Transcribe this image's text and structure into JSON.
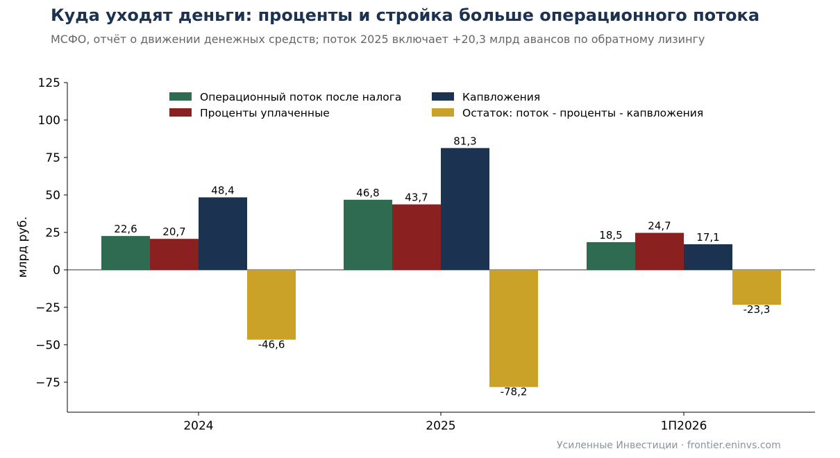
{
  "title": "Куда уходят деньги: проценты и стройка больше операционного потока",
  "subtitle": "МСФО, отчёт о движении денежных средств; поток 2025 включает +20,3 млрд авансов по обратному лизингу",
  "source": "Усиленные Инвестиции · frontier.eninvs.com",
  "chart_data": {
    "type": "bar",
    "categories": [
      "2024",
      "2025",
      "1П2026"
    ],
    "series": [
      {
        "name": "Операционный поток после налога",
        "color": "#2e6b50",
        "values": [
          22.6,
          46.8,
          18.5
        ],
        "labels": [
          "22,6",
          "46,8",
          "18,5"
        ]
      },
      {
        "name": "Проценты уплаченные",
        "color": "#8b2020",
        "values": [
          20.7,
          43.7,
          24.7
        ],
        "labels": [
          "20,7",
          "43,7",
          "24,7"
        ]
      },
      {
        "name": "Капвложения",
        "color": "#1b3350",
        "values": [
          48.4,
          81.3,
          17.1
        ],
        "labels": [
          "48,4",
          "81,3",
          "17,1"
        ]
      },
      {
        "name": "Остаток: поток - проценты - капвложения",
        "color": "#c9a227",
        "values": [
          -46.6,
          -78.2,
          -23.3
        ],
        "labels": [
          "-46,6",
          "-78,2",
          "-23,3"
        ]
      }
    ],
    "ylabel": "млрд руб.",
    "xlabel": "",
    "ylim": [
      -95,
      125
    ],
    "yticks": [
      125,
      100,
      75,
      50,
      25,
      0,
      -25,
      -50,
      -75
    ],
    "ytick_labels": [
      "125",
      "100",
      "75",
      "50",
      "25",
      "0",
      "−25",
      "−50",
      "−75"
    ],
    "grid": false,
    "legend": "top-center"
  }
}
